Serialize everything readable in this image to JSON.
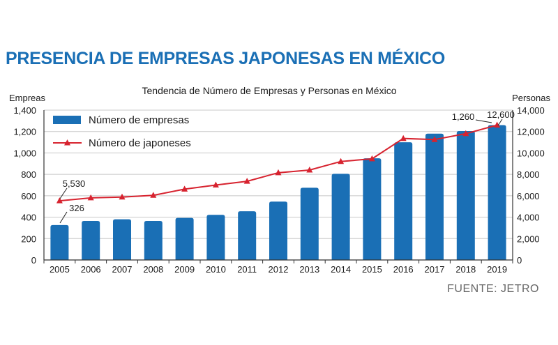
{
  "headline": "PRESENCIA DE EMPRESAS JAPONESAS EN MÉXICO",
  "source": "FUENTE: JETRO",
  "chart_data": {
    "type": "bar",
    "title": "Tendencia de Número de Empresas y Personas en México",
    "xlabel": "",
    "ylabel": "Empreas",
    "y2label": "Personas",
    "categories": [
      "2005",
      "2006",
      "2007",
      "2008",
      "2009",
      "2010",
      "2011",
      "2012",
      "2013",
      "2014",
      "2015",
      "2016",
      "2017",
      "2018",
      "2019"
    ],
    "ylim": [
      0,
      1400
    ],
    "y2lim": [
      0,
      14000
    ],
    "yticks": [
      0,
      200,
      400,
      600,
      800,
      1000,
      1200,
      1400
    ],
    "ytick_labels": [
      "0",
      "200",
      "400",
      "600",
      "800",
      "1,000",
      "1,200",
      "1,400"
    ],
    "y2ticks": [
      0,
      2000,
      4000,
      6000,
      8000,
      10000,
      12000,
      14000
    ],
    "y2tick_labels": [
      "0",
      "2,000",
      "4,000",
      "6,000",
      "8,000",
      "10,000",
      "12,000",
      "14,000"
    ],
    "grid": true,
    "legend_position": "top-left",
    "series": [
      {
        "name": "Número de empresas",
        "type": "bar",
        "axis": "left",
        "color": "#1a6fb5",
        "values": [
          326,
          365,
          380,
          365,
          393,
          422,
          455,
          545,
          675,
          805,
          950,
          1100,
          1180,
          1205,
          1260
        ]
      },
      {
        "name": "Número de japoneses",
        "type": "line",
        "axis": "right",
        "color": "#d7232f",
        "marker": "triangle",
        "values": [
          5530,
          5800,
          5880,
          6040,
          6620,
          7000,
          7350,
          8150,
          8400,
          9200,
          9450,
          11350,
          11250,
          11800,
          12600
        ]
      }
    ],
    "annotations": [
      {
        "text": "326",
        "series": 0,
        "index": 0
      },
      {
        "text": "5,530",
        "series": 1,
        "index": 0
      },
      {
        "text": "1,260",
        "series": 0,
        "index": 14
      },
      {
        "text": "12,600",
        "series": 1,
        "index": 14
      }
    ]
  }
}
